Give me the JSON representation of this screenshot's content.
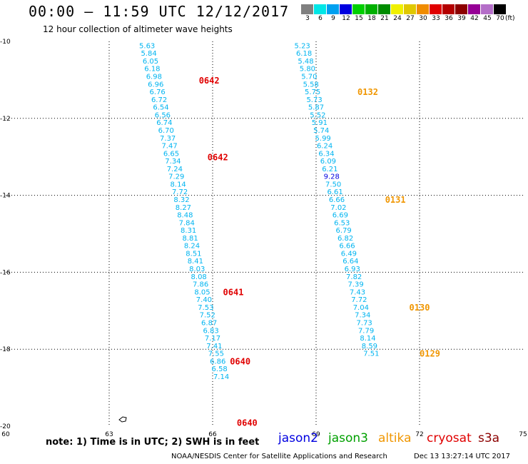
{
  "header": {
    "title": "00:00 – 11:59 UTC 12/12/2017",
    "subtitle": "12 hour collection of altimeter wave heights"
  },
  "color_scale": {
    "units": "(ft)",
    "bins": [
      {
        "label": "3",
        "color": "#808080"
      },
      {
        "label": "6",
        "color": "#00e6e6"
      },
      {
        "label": "9",
        "color": "#00a0f0"
      },
      {
        "label": "12",
        "color": "#0000e0"
      },
      {
        "label": "15",
        "color": "#00d000"
      },
      {
        "label": "18",
        "color": "#00b000"
      },
      {
        "label": "21",
        "color": "#008c00"
      },
      {
        "label": "24",
        "color": "#f0f000"
      },
      {
        "label": "27",
        "color": "#e0c800"
      },
      {
        "label": "30",
        "color": "#f08c00"
      },
      {
        "label": "33",
        "color": "#e00000"
      },
      {
        "label": "36",
        "color": "#b40000"
      },
      {
        "label": "39",
        "color": "#8c0000"
      },
      {
        "label": "42",
        "color": "#960096"
      },
      {
        "label": "45",
        "color": "#b46ec8"
      },
      {
        "label": "70",
        "color": "#000000"
      }
    ]
  },
  "chart_data": {
    "type": "scatter",
    "x_axis": {
      "range": [
        60,
        75
      ],
      "ticks": [
        "60",
        "63",
        "66",
        "69",
        "72",
        "75"
      ]
    },
    "y_axis": {
      "range": [
        -20,
        -10
      ],
      "ticks": [
        "-10",
        "-12",
        "-14",
        "-16",
        "-18",
        "-20"
      ]
    },
    "grid": true,
    "tracks": [
      {
        "satellite": "jason2",
        "color": "#00b4f0",
        "points": [
          {
            "x": 64.1,
            "y": -10.1,
            "swh": "5.63"
          },
          {
            "x": 64.15,
            "y": -10.3,
            "swh": "5.84"
          },
          {
            "x": 64.2,
            "y": -10.5,
            "swh": "6.05"
          },
          {
            "x": 64.25,
            "y": -10.7,
            "swh": "6.18"
          },
          {
            "x": 64.3,
            "y": -10.9,
            "swh": "6.98"
          },
          {
            "x": 64.35,
            "y": -11.1,
            "swh": "6.96"
          },
          {
            "x": 64.4,
            "y": -11.3,
            "swh": "6.76"
          },
          {
            "x": 64.45,
            "y": -11.5,
            "swh": "6.72"
          },
          {
            "x": 64.5,
            "y": -11.7,
            "swh": "6.54"
          },
          {
            "x": 64.55,
            "y": -11.9,
            "swh": "6.56"
          },
          {
            "x": 64.6,
            "y": -12.1,
            "swh": "6.74"
          },
          {
            "x": 64.65,
            "y": -12.3,
            "swh": "6.70"
          },
          {
            "x": 64.7,
            "y": -12.5,
            "swh": "7.37"
          },
          {
            "x": 64.75,
            "y": -12.7,
            "swh": "7.47"
          },
          {
            "x": 64.8,
            "y": -12.9,
            "swh": "6.65"
          },
          {
            "x": 64.85,
            "y": -13.1,
            "swh": "7.34"
          },
          {
            "x": 64.9,
            "y": -13.3,
            "swh": "7.24"
          },
          {
            "x": 64.95,
            "y": -13.5,
            "swh": "7.29"
          },
          {
            "x": 65.0,
            "y": -13.7,
            "swh": "8.14"
          },
          {
            "x": 65.05,
            "y": -13.9,
            "swh": "7.72"
          },
          {
            "x": 65.1,
            "y": -14.1,
            "swh": "8.32"
          },
          {
            "x": 65.15,
            "y": -14.3,
            "swh": "8.27"
          },
          {
            "x": 65.2,
            "y": -14.5,
            "swh": "8.48"
          },
          {
            "x": 65.25,
            "y": -14.7,
            "swh": "7.84"
          },
          {
            "x": 65.3,
            "y": -14.9,
            "swh": "8.31"
          },
          {
            "x": 65.35,
            "y": -15.1,
            "swh": "8.81"
          },
          {
            "x": 65.4,
            "y": -15.3,
            "swh": "8.24"
          },
          {
            "x": 65.45,
            "y": -15.5,
            "swh": "8.51"
          },
          {
            "x": 65.5,
            "y": -15.7,
            "swh": "8.41"
          },
          {
            "x": 65.55,
            "y": -15.9,
            "swh": "8.03"
          },
          {
            "x": 65.6,
            "y": -16.1,
            "swh": "8.08"
          },
          {
            "x": 65.65,
            "y": -16.3,
            "swh": "7.86"
          },
          {
            "x": 65.7,
            "y": -16.5,
            "swh": "8.05"
          },
          {
            "x": 65.75,
            "y": -16.7,
            "swh": "7.40"
          },
          {
            "x": 65.8,
            "y": -16.9,
            "swh": "7.53"
          },
          {
            "x": 65.85,
            "y": -17.1,
            "swh": "7.52"
          },
          {
            "x": 65.9,
            "y": -17.3,
            "swh": "6.87"
          },
          {
            "x": 65.95,
            "y": -17.5,
            "swh": "6.83"
          },
          {
            "x": 66.0,
            "y": -17.7,
            "swh": "7.17"
          },
          {
            "x": 66.05,
            "y": -17.9,
            "swh": "7.41"
          },
          {
            "x": 66.1,
            "y": -18.1,
            "swh": "7.55"
          },
          {
            "x": 66.15,
            "y": -18.3,
            "swh": "6.86"
          },
          {
            "x": 66.2,
            "y": -18.5,
            "swh": "6.58"
          },
          {
            "x": 66.25,
            "y": -18.7,
            "swh": "7.14"
          }
        ],
        "time_labels": [
          {
            "x": 65.9,
            "y": -11.0,
            "text": "0642"
          },
          {
            "x": 66.15,
            "y": -13.0,
            "text": "0642"
          },
          {
            "x": 66.6,
            "y": -16.5,
            "text": "0641"
          },
          {
            "x": 66.8,
            "y": -18.3,
            "text": "0640"
          },
          {
            "x": 67.0,
            "y": -19.9,
            "text": "0640"
          }
        ]
      },
      {
        "satellite": "altika",
        "color": "#00b4f0",
        "points": [
          {
            "x": 68.6,
            "y": -10.1,
            "swh": "5.23"
          },
          {
            "x": 68.65,
            "y": -10.3,
            "swh": "6.18"
          },
          {
            "x": 68.7,
            "y": -10.5,
            "swh": "5.48"
          },
          {
            "x": 68.75,
            "y": -10.7,
            "swh": "5.80"
          },
          {
            "x": 68.8,
            "y": -10.9,
            "swh": "5.70"
          },
          {
            "x": 68.85,
            "y": -11.1,
            "swh": "5.58"
          },
          {
            "x": 68.9,
            "y": -11.3,
            "swh": "5.75"
          },
          {
            "x": 68.95,
            "y": -11.5,
            "swh": "5.73"
          },
          {
            "x": 69.0,
            "y": -11.7,
            "swh": "5.87"
          },
          {
            "x": 69.05,
            "y": -11.9,
            "swh": "5.52"
          },
          {
            "x": 69.1,
            "y": -12.1,
            "swh": "5.91"
          },
          {
            "x": 69.15,
            "y": -12.3,
            "swh": "5.74"
          },
          {
            "x": 69.2,
            "y": -12.5,
            "swh": "5.99"
          },
          {
            "x": 69.25,
            "y": -12.7,
            "swh": "6.24"
          },
          {
            "x": 69.3,
            "y": -12.9,
            "swh": "6.34"
          },
          {
            "x": 69.35,
            "y": -13.1,
            "swh": "6.09"
          },
          {
            "x": 69.4,
            "y": -13.3,
            "swh": "6.21"
          },
          {
            "x": 69.45,
            "y": -13.5,
            "swh": "9.28"
          },
          {
            "x": 69.5,
            "y": -13.7,
            "swh": "7.50"
          },
          {
            "x": 69.55,
            "y": -13.9,
            "swh": "6.61"
          },
          {
            "x": 69.6,
            "y": -14.1,
            "swh": "6.66"
          },
          {
            "x": 69.65,
            "y": -14.3,
            "swh": "7.02"
          },
          {
            "x": 69.7,
            "y": -14.5,
            "swh": "6.69"
          },
          {
            "x": 69.75,
            "y": -14.7,
            "swh": "6.53"
          },
          {
            "x": 69.8,
            "y": -14.9,
            "swh": "6.79"
          },
          {
            "x": 69.85,
            "y": -15.1,
            "swh": "6.82"
          },
          {
            "x": 69.9,
            "y": -15.3,
            "swh": "6.66"
          },
          {
            "x": 69.95,
            "y": -15.5,
            "swh": "6.49"
          },
          {
            "x": 70.0,
            "y": -15.7,
            "swh": "6.64"
          },
          {
            "x": 70.05,
            "y": -15.9,
            "swh": "6.93"
          },
          {
            "x": 70.1,
            "y": -16.1,
            "swh": "7.82"
          },
          {
            "x": 70.15,
            "y": -16.3,
            "swh": "7.39"
          },
          {
            "x": 70.2,
            "y": -16.5,
            "swh": "7.43"
          },
          {
            "x": 70.25,
            "y": -16.7,
            "swh": "7.72"
          },
          {
            "x": 70.3,
            "y": -16.9,
            "swh": "7.04"
          },
          {
            "x": 70.35,
            "y": -17.1,
            "swh": "7.34"
          },
          {
            "x": 70.4,
            "y": -17.3,
            "swh": "7.73"
          },
          {
            "x": 70.45,
            "y": -17.5,
            "swh": "7.79"
          },
          {
            "x": 70.5,
            "y": -17.7,
            "swh": "8.14"
          },
          {
            "x": 70.55,
            "y": -17.9,
            "swh": "8.59"
          },
          {
            "x": 70.6,
            "y": -18.1,
            "swh": "7.51"
          }
        ],
        "time_labels": [
          {
            "x": 70.5,
            "y": -11.3,
            "text": "0132"
          },
          {
            "x": 71.3,
            "y": -14.1,
            "text": "0131"
          },
          {
            "x": 72.0,
            "y": -16.9,
            "text": "0130"
          },
          {
            "x": 72.3,
            "y": -18.1,
            "text": "0129"
          }
        ]
      }
    ]
  },
  "note": "note: 1) Time is in UTC; 2) SWH is in feet",
  "satellite_legend": [
    {
      "name": "jason2",
      "color": "#0000e0"
    },
    {
      "name": "jason3",
      "color": "#00a000"
    },
    {
      "name": "altika",
      "color": "#f09600"
    },
    {
      "name": "cryosat",
      "color": "#e00000"
    },
    {
      "name": "s3a",
      "color": "#8c0000"
    }
  ],
  "footer": {
    "credit": "NOAA/NESDIS Center for Satellite Applications and Research",
    "timestamp": "Dec 13 13:27:14 UTC 2017"
  }
}
